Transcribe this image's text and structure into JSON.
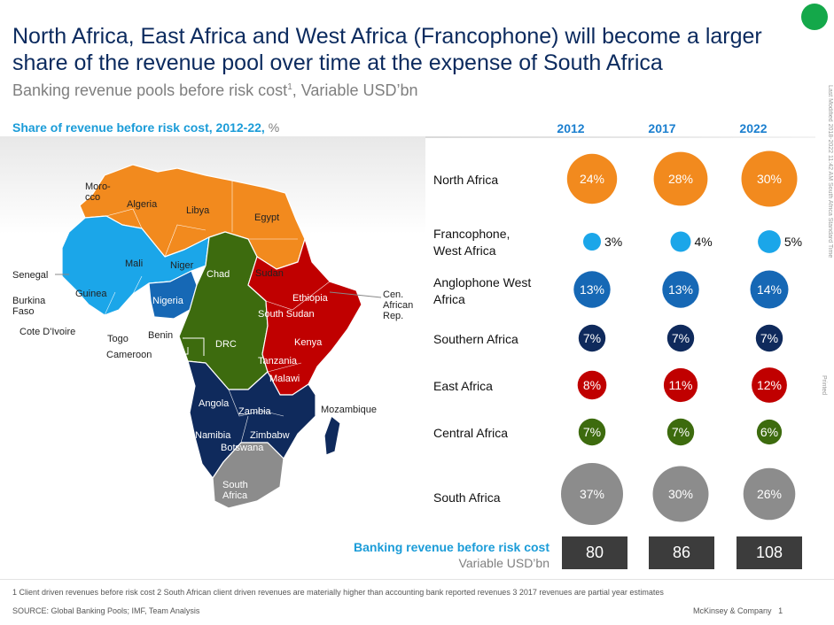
{
  "header": {
    "title": "North Africa, East Africa and West Africa (Francophone) will become a larger share of the revenue pool over time at the expense of South Africa",
    "subtitle": "Banking revenue pools before risk cost",
    "subtitle_sup": "1",
    "subtitle_tail": ", Variable  USD’bn",
    "side_note": "Last Modified 2018-2022  11:42  AM South Africa Standard Time",
    "side_printed": "Printed",
    "status_color": "#14a84a"
  },
  "section": {
    "label": "Share of revenue before risk cost, 2012-22,",
    "unit": " %"
  },
  "map": {
    "labels": {
      "morocco": "Moro-\ncco",
      "algeria": "Algeria",
      "libya": "Libya",
      "egypt": "Egypt",
      "mali": "Mali",
      "niger": "Niger",
      "chad": "Chad",
      "sudan": "Sudan",
      "senegal": "Senegal",
      "guinea": "Guinea",
      "nigeria": "Nigeria",
      "ethiopia": "Ethiopia",
      "south_sudan": "South Sudan",
      "burkina": "Burkina\nFaso",
      "cote": "Cote D'Ivoire",
      "togo": "Togo",
      "benin": "Benin",
      "cameroon": "Cameroon",
      "car": "Cen.\nAfrican\nRep.",
      "drc": "DRC",
      "kenya": "Kenya",
      "tanzania": "Tanzania",
      "malawi": "Malawi",
      "angola": "Angola",
      "zambia": "Zambia",
      "mozambique": "Mozambique",
      "namibia": "Namibia",
      "zimbabwe": "Zimbabw",
      "botswana": "Botswana",
      "south_africa": "South\nAfrica"
    }
  },
  "chart_data": {
    "type": "bubble",
    "title": "Share of revenue before risk cost, 2012-22, %",
    "unit": "%",
    "years": [
      "2012",
      "2017",
      "2022"
    ],
    "series": [
      {
        "name": "North Africa",
        "color": "#f28a1e",
        "values": [
          24,
          28,
          30
        ]
      },
      {
        "name": "Francophone,\nWest Africa",
        "color": "#1ba6e9",
        "values": [
          3,
          4,
          5
        ]
      },
      {
        "name": "Anglophone West\nAfrica",
        "color": "#1668b5",
        "values": [
          13,
          13,
          14
        ]
      },
      {
        "name": "Southern Africa",
        "color": "#0f2a5c",
        "values": [
          7,
          7,
          7
        ]
      },
      {
        "name": "East Africa",
        "color": "#c00000",
        "values": [
          8,
          11,
          12
        ]
      },
      {
        "name": "Central Africa",
        "color": "#3d6b0e",
        "values": [
          7,
          7,
          6
        ]
      },
      {
        "name": "South Africa",
        "color": "#8c8c8c",
        "values": [
          37,
          30,
          26
        ]
      }
    ],
    "totals": {
      "label": "Banking revenue before risk cost",
      "unit": "Variable USD’bn",
      "values": [
        80,
        86,
        108
      ]
    }
  },
  "footer": {
    "footnotes": "1 Client driven revenues before risk cost    2 South African client driven revenues are materially higher than accounting bank reported revenues    3 2017 revenues are partial year estimates",
    "source": "SOURCE:  Global Banking Pools;  IMF,  Team Analysis",
    "company": "McKinsey & Company",
    "page": "1"
  }
}
